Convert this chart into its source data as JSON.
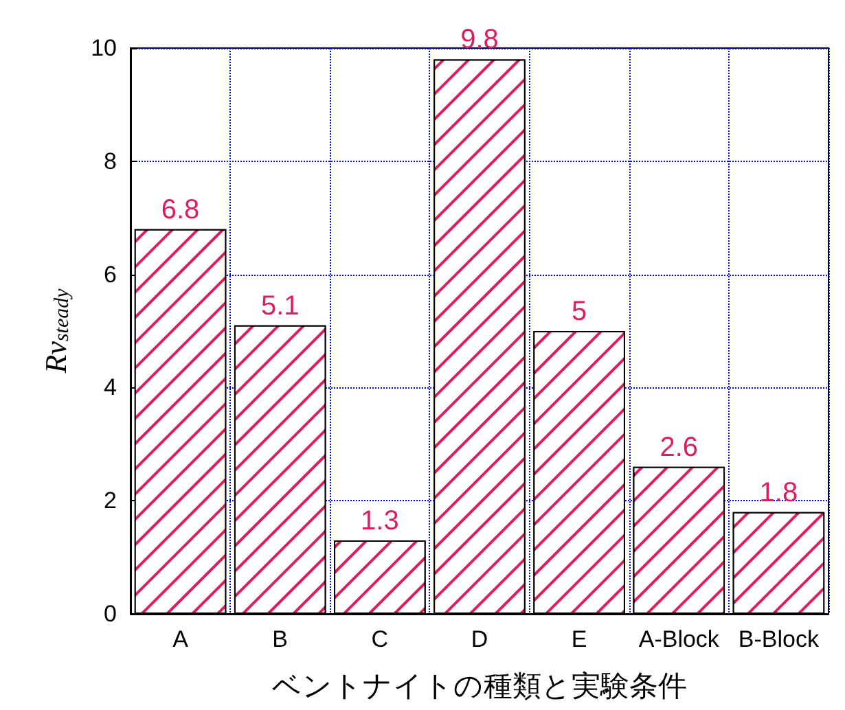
{
  "chart_data": {
    "type": "bar",
    "xlabel": "ベントナイトの種類と実験条件",
    "ylabel": "Rv$_{steady}$",
    "categories": [
      "A",
      "B",
      "C",
      "D",
      "E",
      "A-Block",
      "B-Block"
    ],
    "values": [
      6.8,
      5.1,
      1.3,
      9.8,
      5,
      2.6,
      1.8
    ],
    "color": "#dc1e5a",
    "ylim": [
      0,
      10
    ],
    "yticks": [
      0,
      2,
      4,
      6,
      8,
      10
    ],
    "grid": true,
    "data_labels": true
  }
}
